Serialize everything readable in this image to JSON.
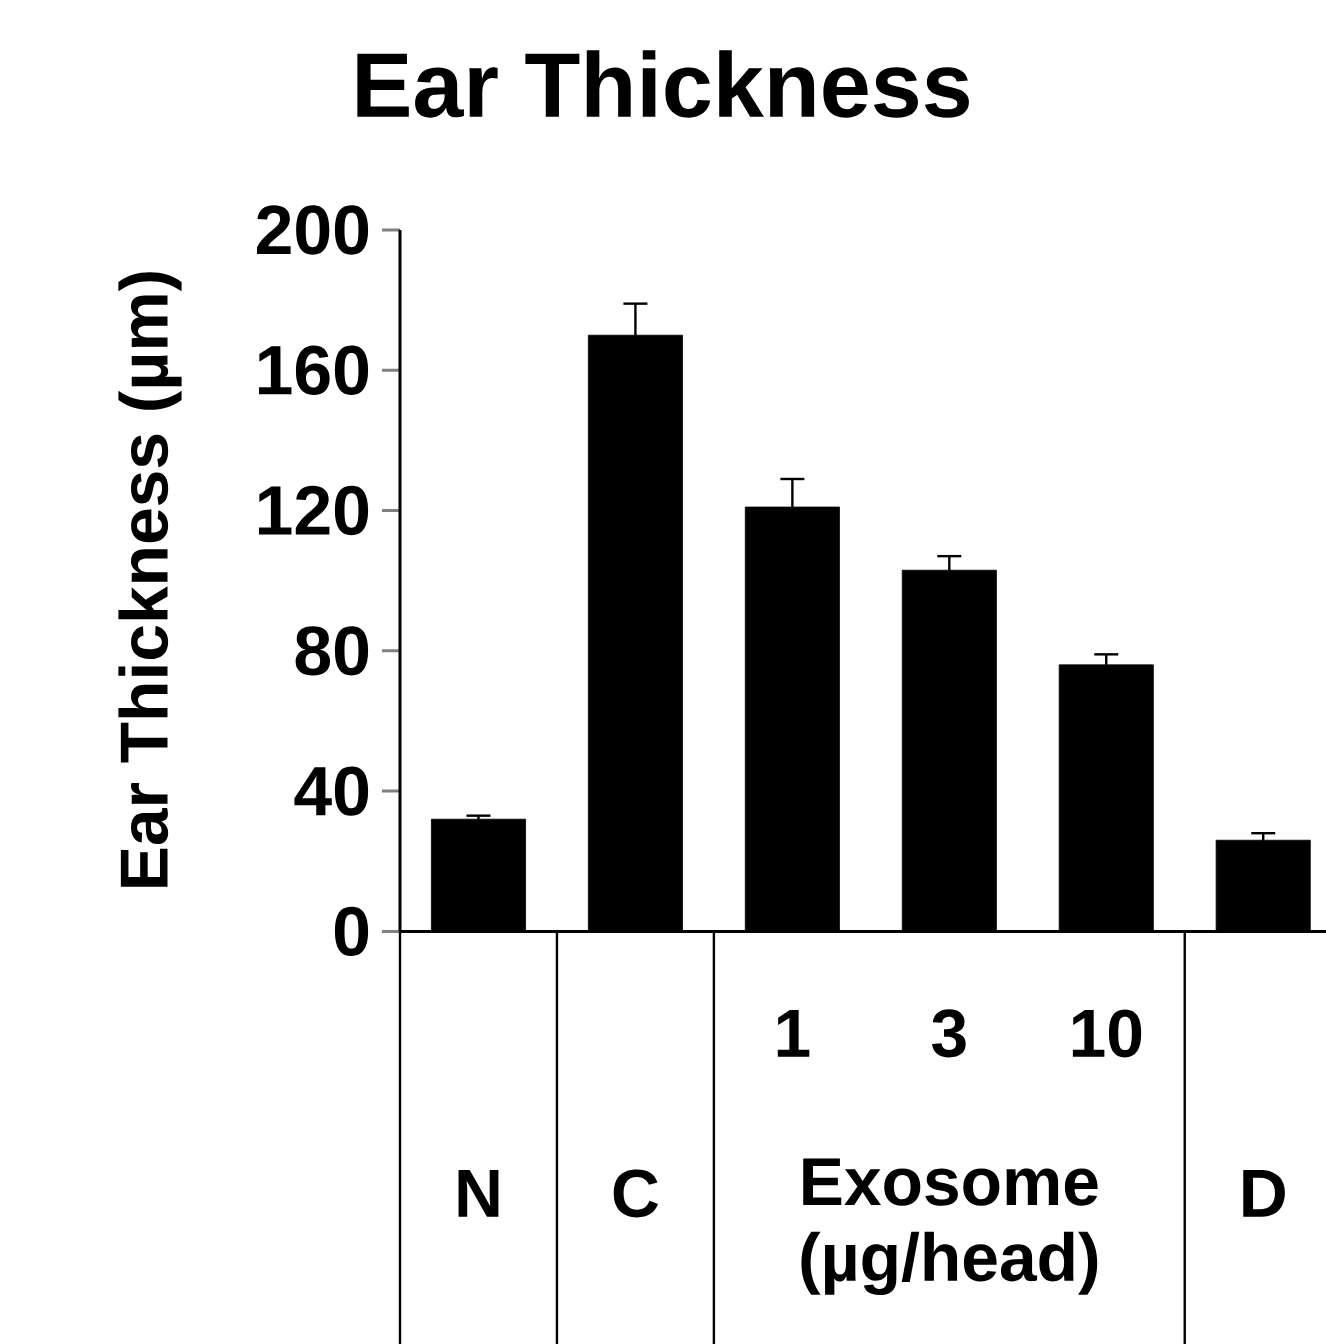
{
  "chart_data": {
    "type": "bar",
    "title": "Ear Thickness",
    "ylabel": "Ear Thickness (µm)",
    "categories": [
      "N",
      "C",
      "1",
      "3",
      "10",
      "D"
    ],
    "values": [
      32,
      170,
      121,
      103,
      76,
      26
    ],
    "errors": [
      1,
      9,
      8,
      4,
      3,
      2
    ],
    "color": "#000000",
    "ylim": [
      0,
      200
    ],
    "yticks": [
      0,
      40,
      80,
      120,
      160,
      200
    ],
    "annotations": [
      "Exosome (µg/head)"
    ]
  }
}
